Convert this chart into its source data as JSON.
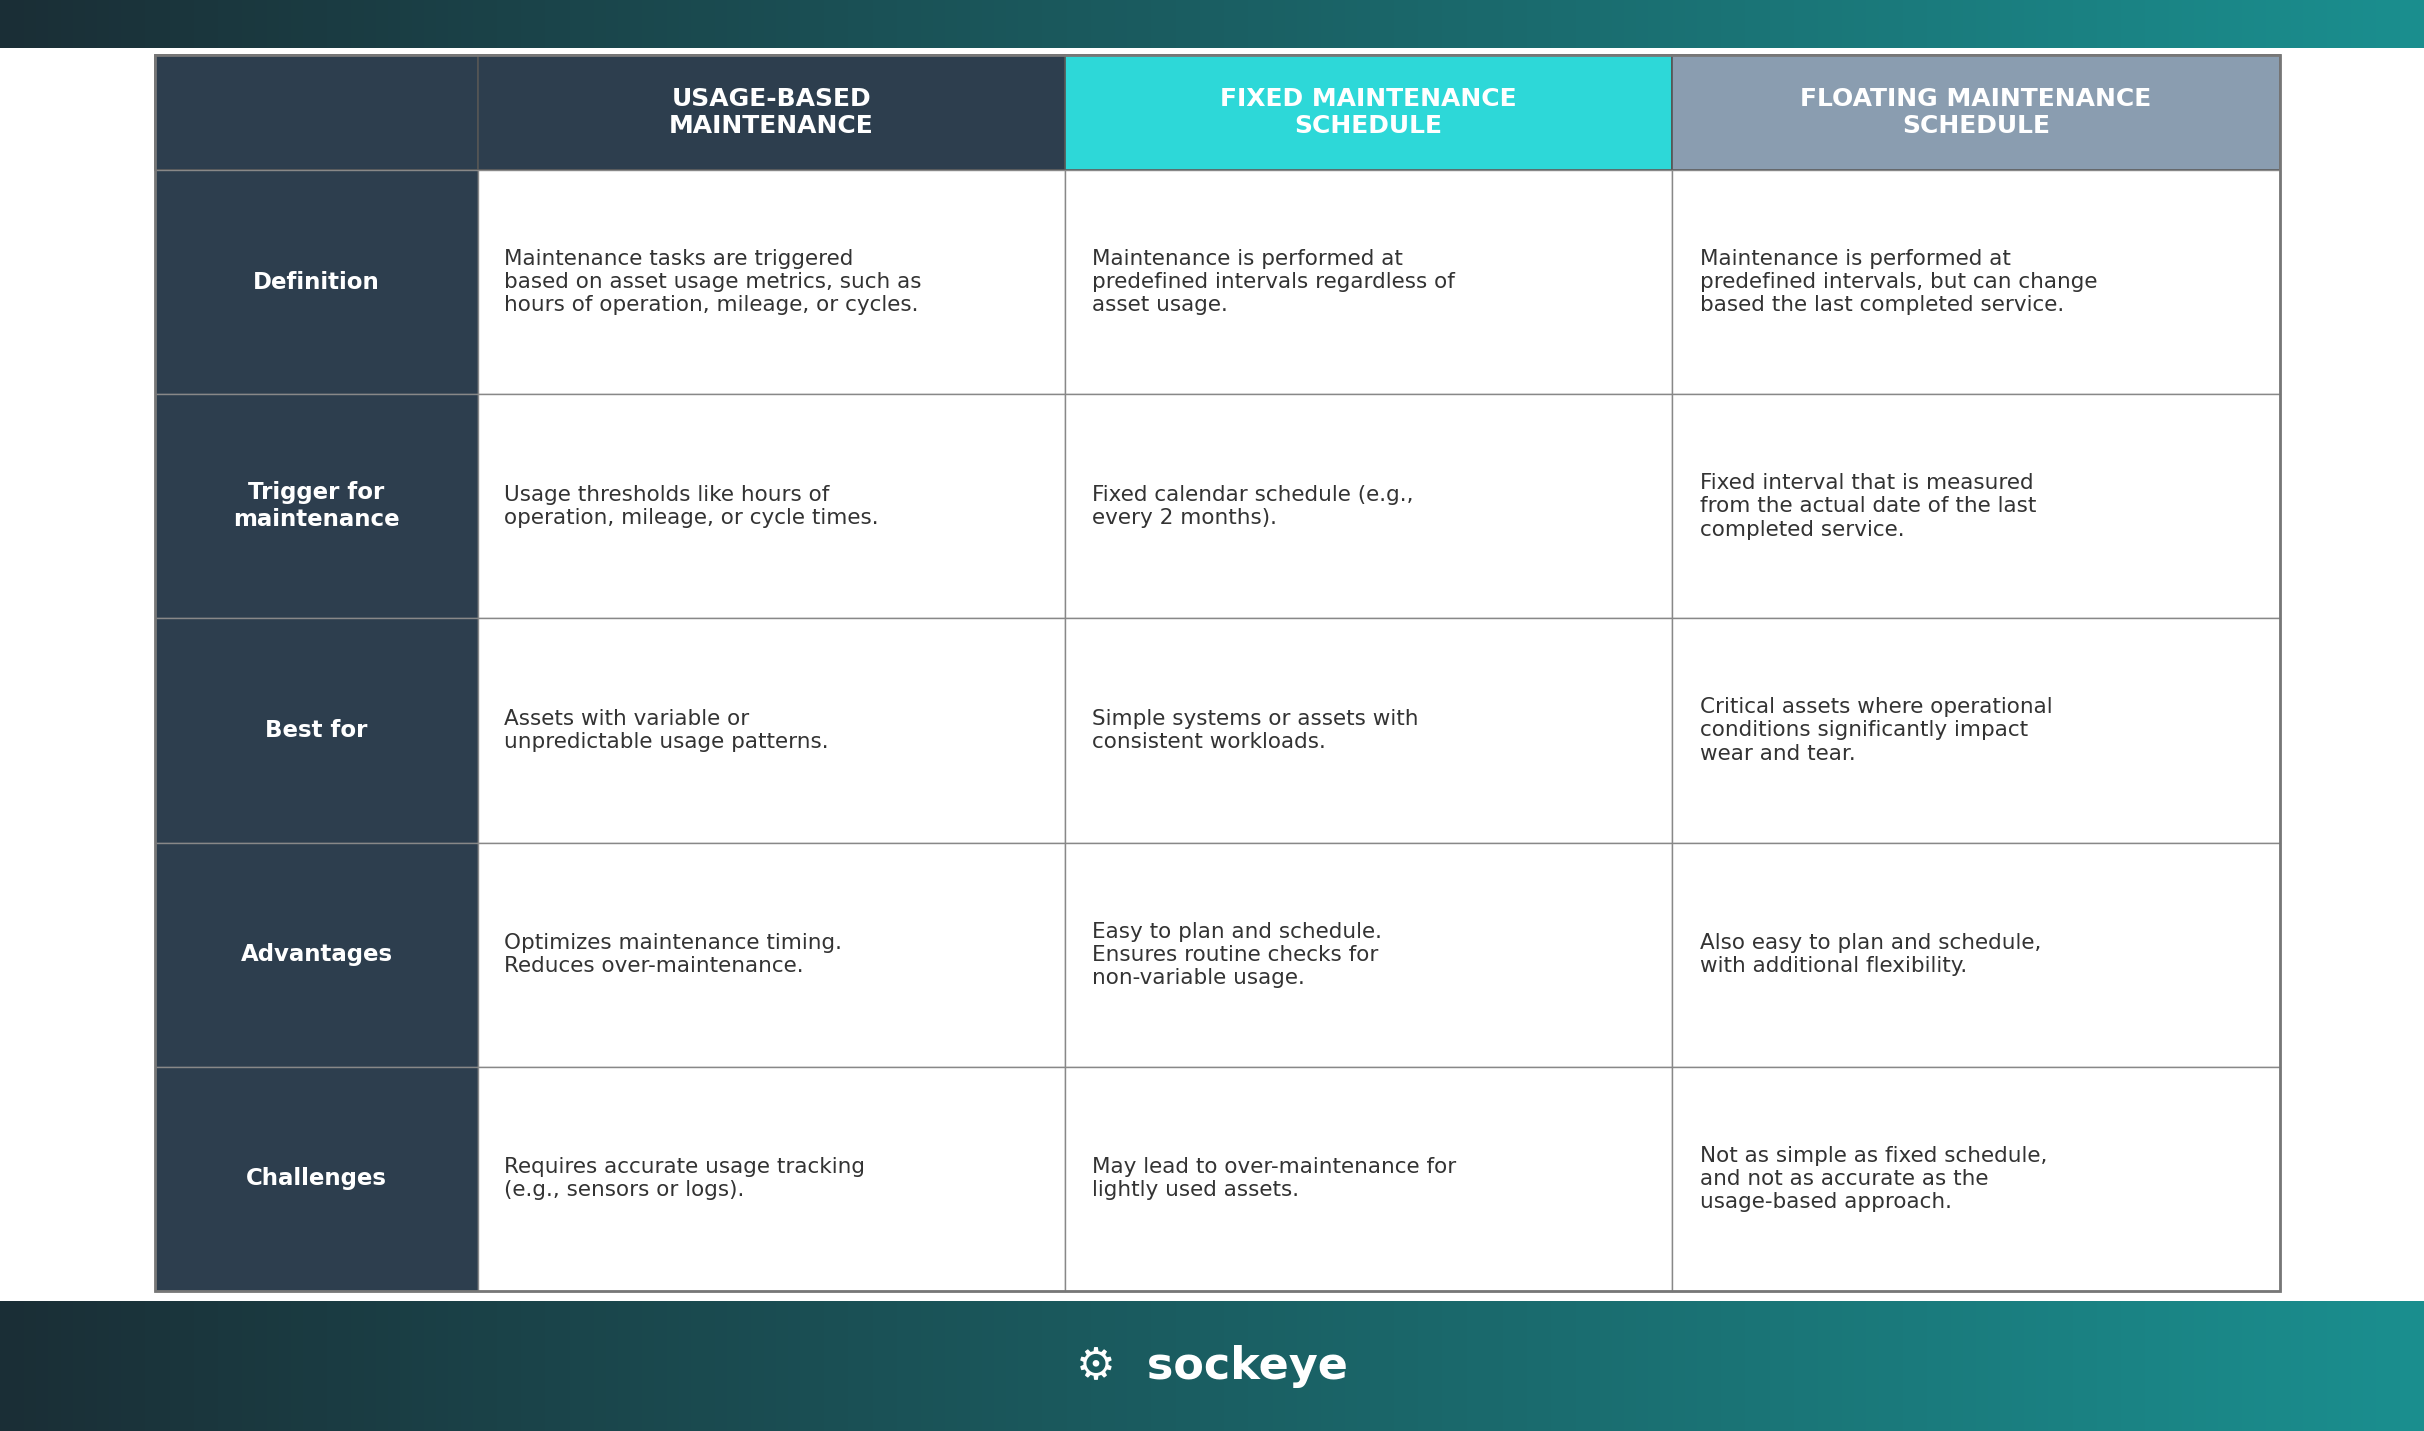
{
  "fig_bg": "#f0f0f0",
  "top_bar_color_left": "#1a2e35",
  "top_bar_color_right": "#1a8a8a",
  "footer_color_left": "#1a2e35",
  "footer_color_right": "#1a9090",
  "header_col_colors": [
    "#2d3e4e",
    "#2dd8d8",
    "#8a9db0"
  ],
  "row_label_color": "#2d3e4e",
  "cell_bg_even": "#ffffff",
  "cell_bg_odd": "#f7f7f7",
  "border_color": "#bbbbbb",
  "text_white": "#ffffff",
  "text_dark": "#333333",
  "headers": [
    "",
    "USAGE-BASED\nMAINTENANCE",
    "FIXED MAINTENANCE\nSCHEDULE",
    "FLOATING MAINTENANCE\nSCHEDULE"
  ],
  "rows": [
    {
      "label": "Definition",
      "col1": "Maintenance tasks are triggered\nbased on asset usage metrics, such as\nhours of operation, mileage, or cycles.",
      "col2": "Maintenance is performed at\npredefined intervals regardless of\nasset usage.",
      "col3": "Maintenance is performed at\npredefined intervals, but can change\nbased the last completed service."
    },
    {
      "label": "Trigger for\nmaintenance",
      "col1": "Usage thresholds like hours of\noperation, mileage, or cycle times.",
      "col2": "Fixed calendar schedule (e.g.,\nevery 2 months).",
      "col3": "Fixed interval that is measured\nfrom the actual date of the last\ncompleted service."
    },
    {
      "label": "Best for",
      "col1": "Assets with variable or\nunpredictable usage patterns.",
      "col2": "Simple systems or assets with\nconsistent workloads.",
      "col3": "Critical assets where operational\nconditions significantly impact\nwear and tear."
    },
    {
      "label": "Advantages",
      "col1": "Optimizes maintenance timing.\nReduces over-maintenance.",
      "col2": "Easy to plan and schedule.\nEnsures routine checks for\nnon-variable usage.",
      "col3": "Also easy to plan and schedule,\nwith additional flexibility."
    },
    {
      "label": "Challenges",
      "col1": "Requires accurate usage tracking\n(e.g., sensors or logs).",
      "col2": "May lead to over-maintenance for\nlightly used assets.",
      "col3": "Not as simple as fixed schedule,\nand not as accurate as the\nusage-based approach."
    }
  ]
}
